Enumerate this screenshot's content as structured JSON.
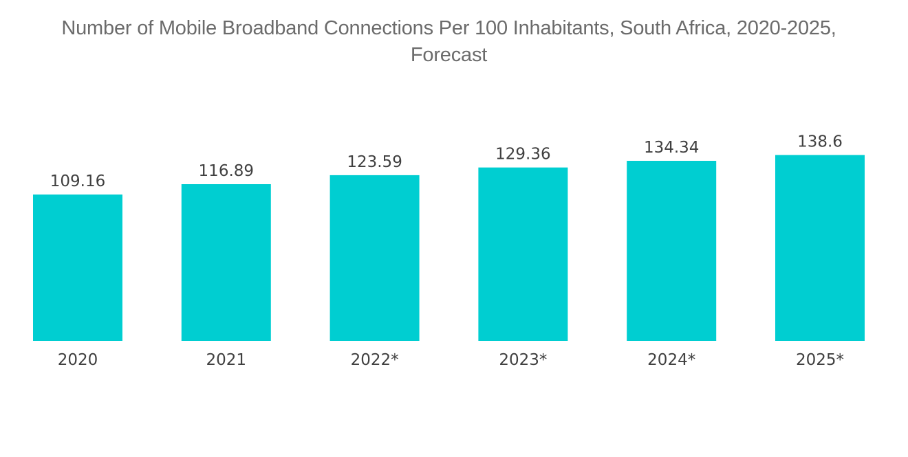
{
  "chart_data": {
    "type": "bar",
    "title_lines": [
      "Number of Mobile Broadband Connections Per 100 Inhabitants, South Africa, 2020-2025,",
      "Forecast"
    ],
    "categories": [
      "2020",
      "2021",
      "2022*",
      "2023*",
      "2024*",
      "2025*"
    ],
    "values": [
      109.16,
      116.89,
      123.59,
      129.36,
      134.34,
      138.6
    ],
    "value_labels": [
      "109.16",
      "116.89",
      "123.59",
      "129.36",
      "134.34",
      "138.6"
    ],
    "xlabel": "",
    "ylabel": "",
    "grid": false,
    "legend": "none",
    "bar_color": "#00CED1"
  }
}
